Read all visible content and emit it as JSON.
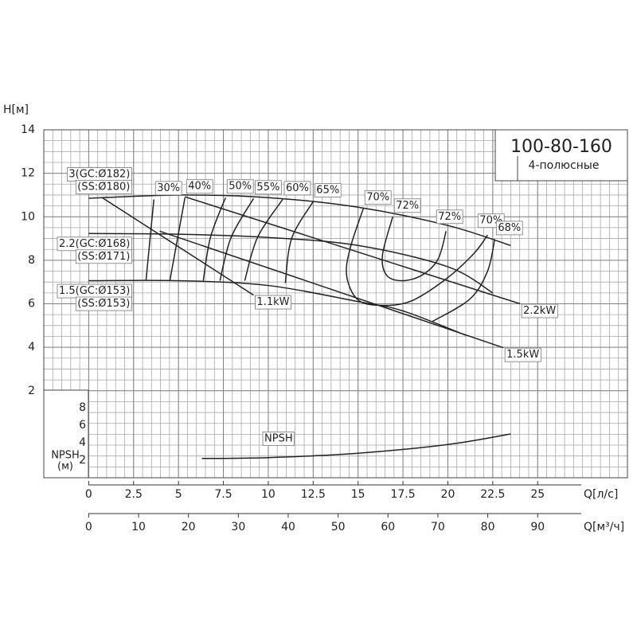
{
  "chart_data": {
    "type": "pump_curve",
    "title": "100-80-160",
    "subtitle": "4-полюсные",
    "y_label": "H[м]",
    "x_label": "Q[л/с]",
    "x2_label": "Q[м³/ч]",
    "npsh_label": [
      "NPSH",
      "(м)"
    ],
    "xlim": [
      -2.5,
      30
    ],
    "xticks": [
      0,
      2.5,
      5,
      7.5,
      10,
      12.5,
      15,
      17.5,
      20,
      22.5,
      25
    ],
    "x2lim": [
      -9,
      108
    ],
    "x2ticks": [
      0,
      10,
      20,
      30,
      40,
      50,
      60,
      70,
      80,
      90
    ],
    "ylim": [
      -2,
      14
    ],
    "yticks": [
      2,
      4,
      6,
      8,
      10,
      12,
      14
    ],
    "npsh_ylim": [
      0,
      10
    ],
    "npsh_yticks": [
      2,
      4,
      6,
      8
    ],
    "grid": true,
    "color": "#222222",
    "head_curves": [
      {
        "label": [
          "3(GC:Ø182)",
          "(SS:Ø180)"
        ],
        "x": [
          0,
          5,
          10,
          15,
          20,
          23.5
        ],
        "y": [
          10.85,
          11.0,
          10.88,
          10.44,
          9.6,
          8.68
        ]
      },
      {
        "label": [
          "2.2(GC:Ø168)",
          "(SS:Ø171)"
        ],
        "x": [
          0,
          5,
          10,
          15,
          20,
          22.5
        ],
        "y": [
          9.23,
          9.2,
          9.05,
          8.68,
          7.7,
          6.5
        ]
      },
      {
        "label": [
          "1.5(GC:Ø153)",
          "(SS:Ø153)"
        ],
        "x": [
          0,
          5,
          10,
          15,
          17.5,
          21
        ],
        "y": [
          7.06,
          7.06,
          6.84,
          6.1,
          5.67,
          4.55
        ]
      }
    ],
    "power_curves": [
      {
        "name": "1.1kW",
        "x": [
          0.75,
          9.18
        ],
        "y": [
          10.88,
          6.4
        ]
      },
      {
        "name": "2.2kW",
        "x": [
          5.36,
          24.02
        ],
        "y": [
          10.92,
          6.0
        ]
      },
      {
        "name": "1.5kW",
        "x": [
          3.95,
          23.09
        ],
        "y": [
          9.34,
          3.98
        ]
      }
    ],
    "efficiency_curves": [
      {
        "value": 30,
        "label": "30%",
        "x": [
          3.63,
          3.19
        ],
        "y": [
          10.8,
          7.06
        ]
      },
      {
        "value": 40,
        "label": "40%",
        "x": [
          5.36,
          4.52
        ],
        "y": [
          10.88,
          7.06
        ]
      },
      {
        "value": 50,
        "label": "50%",
        "x": [
          7.62,
          6.78,
          6.38
        ],
        "y": [
          10.88,
          9.05,
          7.06
        ]
      },
      {
        "value": 55,
        "label": "55%",
        "x": [
          9.18,
          7.93,
          7.31
        ],
        "y": [
          10.84,
          9.05,
          7.06
        ]
      },
      {
        "value": 60,
        "label": "60%",
        "x": [
          10.8,
          9.4,
          8.69
        ],
        "y": [
          10.8,
          9.05,
          7.06
        ]
      },
      {
        "value": 65,
        "label": "65%",
        "x": [
          12.5,
          11.3,
          10.95
        ],
        "y": [
          10.7,
          9.0,
          6.95
        ]
      },
      {
        "value": 70,
        "label": "70%",
        "x": [
          15.29,
          14.58,
          14.36,
          14.94,
          16.13,
          17.91,
          19.9,
          21.45,
          22.21
        ],
        "y": [
          10.37,
          8.61,
          7.32,
          6.22,
          5.93,
          6.11,
          7.14,
          8.31,
          9.16
        ]
      },
      {
        "value": 72,
        "label": "72%",
        "x": [
          16.93,
          16.36,
          16.58,
          17.46,
          18.57,
          19.46,
          19.9
        ],
        "y": [
          10.0,
          8.24,
          7.32,
          7.06,
          7.32,
          8.06,
          9.34
        ]
      },
      {
        "value": 68,
        "label": "68%",
        "x": [
          22.61,
          22.21,
          21.23,
          19.15
        ],
        "y": [
          8.97,
          7.5,
          6.22,
          5.19
        ]
      }
    ],
    "npsh_curve": {
      "name": "NPSH",
      "x": [
        6.3,
        10,
        15,
        20,
        23.5
      ],
      "y": [
        2.2,
        2.3,
        2.8,
        3.8,
        5.0
      ]
    }
  }
}
